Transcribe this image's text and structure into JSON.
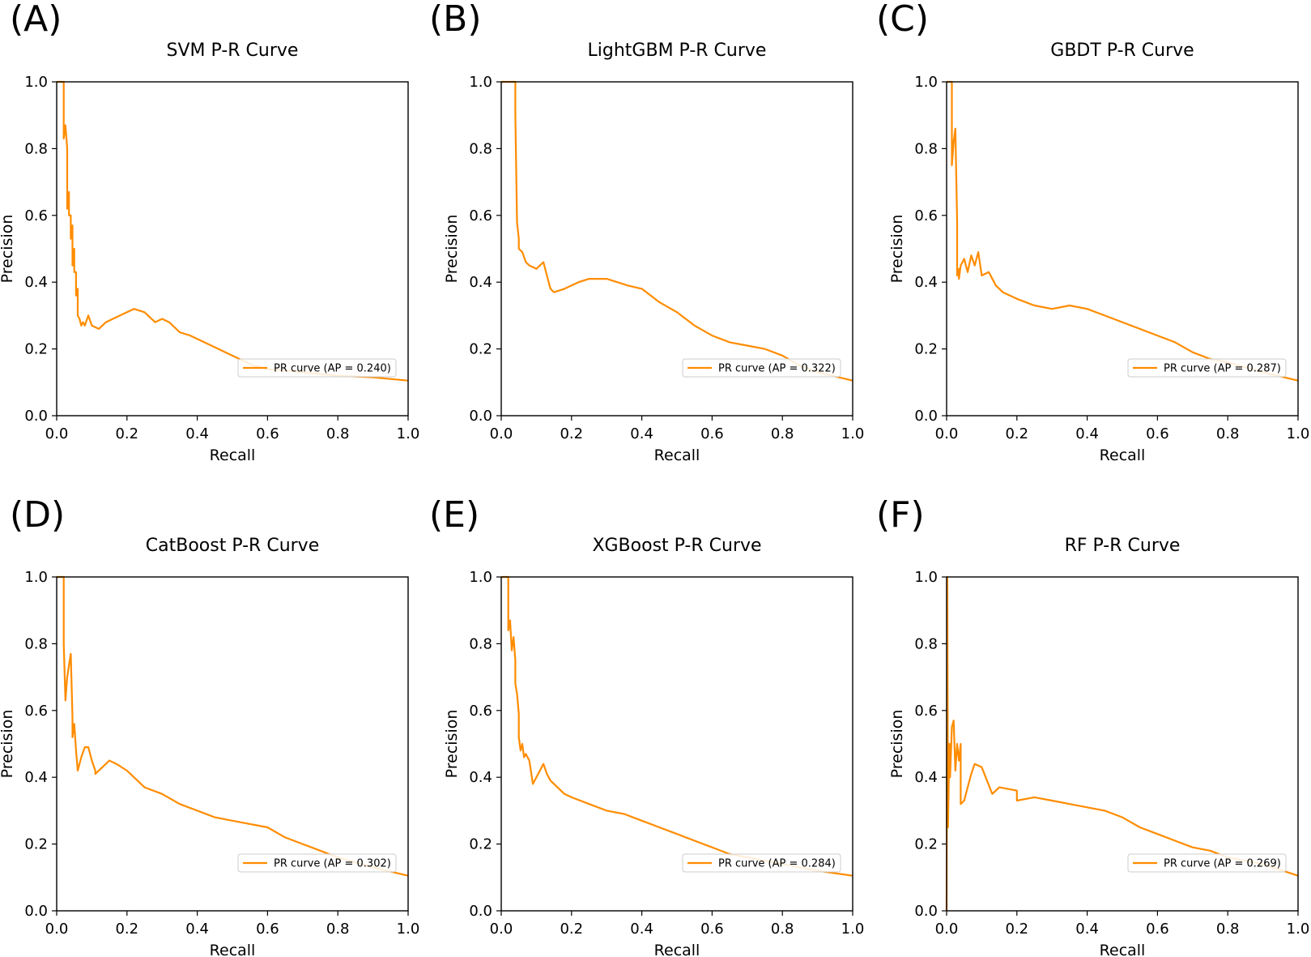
{
  "figure": {
    "background": "#ffffff",
    "line_color": "#ff8c00"
  },
  "chart_data": [
    {
      "panel_label": "(A)",
      "type": "line",
      "title": "SVM P-R Curve",
      "xlabel": "Recall",
      "ylabel": "Precision",
      "xlim": [
        0,
        1
      ],
      "ylim": [
        0,
        1
      ],
      "xticks": [
        "0.0",
        "0.2",
        "0.4",
        "0.6",
        "0.8",
        "1.0"
      ],
      "yticks": [
        "0.0",
        "0.2",
        "0.4",
        "0.6",
        "0.8",
        "1.0"
      ],
      "legend": {
        "label": "PR curve (AP = 0.240)",
        "location": "lower-right"
      },
      "series": [
        {
          "name": "PR curve",
          "x": [
            0,
            0.02,
            0.02,
            0.025,
            0.03,
            0.03,
            0.035,
            0.035,
            0.04,
            0.04,
            0.045,
            0.045,
            0.05,
            0.05,
            0.055,
            0.055,
            0.06,
            0.06,
            0.065,
            0.07,
            0.075,
            0.08,
            0.09,
            0.1,
            0.12,
            0.14,
            0.16,
            0.18,
            0.2,
            0.22,
            0.25,
            0.28,
            0.3,
            0.32,
            0.35,
            0.38,
            0.4,
            0.44,
            0.48,
            0.52,
            0.56,
            0.6,
            0.7,
            0.8,
            0.9,
            0.95,
            1.0
          ],
          "y": [
            1.0,
            1.0,
            0.83,
            0.87,
            0.8,
            0.62,
            0.67,
            0.6,
            0.6,
            0.53,
            0.57,
            0.45,
            0.5,
            0.43,
            0.43,
            0.36,
            0.38,
            0.3,
            0.29,
            0.27,
            0.28,
            0.27,
            0.3,
            0.27,
            0.26,
            0.28,
            0.29,
            0.3,
            0.31,
            0.32,
            0.31,
            0.28,
            0.29,
            0.28,
            0.25,
            0.24,
            0.23,
            0.21,
            0.19,
            0.17,
            0.15,
            0.14,
            0.13,
            0.12,
            0.115,
            0.11,
            0.105
          ]
        }
      ]
    },
    {
      "panel_label": "(B)",
      "type": "line",
      "title": "LightGBM P-R Curve",
      "xlabel": "Recall",
      "ylabel": "Precision",
      "xlim": [
        0,
        1
      ],
      "ylim": [
        0,
        1
      ],
      "xticks": [
        "0.0",
        "0.2",
        "0.4",
        "0.6",
        "0.8",
        "1.0"
      ],
      "yticks": [
        "0.0",
        "0.2",
        "0.4",
        "0.6",
        "0.8",
        "1.0"
      ],
      "legend": {
        "label": "PR curve (AP = 0.322)",
        "location": "lower-right"
      },
      "series": [
        {
          "name": "PR curve",
          "x": [
            0,
            0.04,
            0.04,
            0.045,
            0.05,
            0.05,
            0.06,
            0.07,
            0.08,
            0.1,
            0.12,
            0.13,
            0.14,
            0.15,
            0.18,
            0.2,
            0.22,
            0.25,
            0.28,
            0.3,
            0.33,
            0.36,
            0.4,
            0.45,
            0.5,
            0.55,
            0.6,
            0.65,
            0.7,
            0.75,
            0.8,
            0.85,
            0.9,
            1.0
          ],
          "y": [
            1.0,
            1.0,
            0.9,
            0.58,
            0.53,
            0.5,
            0.49,
            0.46,
            0.45,
            0.44,
            0.46,
            0.42,
            0.38,
            0.37,
            0.38,
            0.39,
            0.4,
            0.41,
            0.41,
            0.41,
            0.4,
            0.39,
            0.38,
            0.34,
            0.31,
            0.27,
            0.24,
            0.22,
            0.21,
            0.2,
            0.18,
            0.15,
            0.13,
            0.105
          ]
        }
      ]
    },
    {
      "panel_label": "(C)",
      "type": "line",
      "title": "GBDT P-R Curve",
      "xlabel": "Recall",
      "ylabel": "Precision",
      "xlim": [
        0,
        1
      ],
      "ylim": [
        0,
        1
      ],
      "xticks": [
        "0.0",
        "0.2",
        "0.4",
        "0.6",
        "0.8",
        "1.0"
      ],
      "yticks": [
        "0.0",
        "0.2",
        "0.4",
        "0.6",
        "0.8",
        "1.0"
      ],
      "legend": {
        "label": "PR curve (AP = 0.287)",
        "location": "lower-right"
      },
      "series": [
        {
          "name": "PR curve",
          "x": [
            0,
            0.015,
            0.015,
            0.02,
            0.025,
            0.03,
            0.03,
            0.035,
            0.035,
            0.04,
            0.05,
            0.06,
            0.07,
            0.08,
            0.09,
            0.1,
            0.12,
            0.14,
            0.16,
            0.2,
            0.25,
            0.3,
            0.35,
            0.4,
            0.45,
            0.5,
            0.55,
            0.6,
            0.65,
            0.7,
            0.75,
            0.8,
            0.9,
            1.0
          ],
          "y": [
            1.0,
            1.0,
            0.75,
            0.82,
            0.86,
            0.58,
            0.42,
            0.44,
            0.41,
            0.45,
            0.47,
            0.43,
            0.48,
            0.45,
            0.49,
            0.42,
            0.43,
            0.39,
            0.37,
            0.35,
            0.33,
            0.32,
            0.33,
            0.32,
            0.3,
            0.28,
            0.26,
            0.24,
            0.22,
            0.19,
            0.17,
            0.16,
            0.13,
            0.105
          ]
        }
      ]
    },
    {
      "panel_label": "(D)",
      "type": "line",
      "title": "CatBoost P-R Curve",
      "xlabel": "Recall",
      "ylabel": "Precision",
      "xlim": [
        0,
        1
      ],
      "ylim": [
        0,
        1
      ],
      "xticks": [
        "0.0",
        "0.2",
        "0.4",
        "0.6",
        "0.8",
        "1.0"
      ],
      "yticks": [
        "0.0",
        "0.2",
        "0.4",
        "0.6",
        "0.8",
        "1.0"
      ],
      "legend": {
        "label": "PR curve (AP = 0.302)",
        "location": "lower-right"
      },
      "series": [
        {
          "name": "PR curve",
          "x": [
            0,
            0.02,
            0.02,
            0.025,
            0.03,
            0.04,
            0.045,
            0.045,
            0.05,
            0.055,
            0.06,
            0.07,
            0.08,
            0.09,
            0.1,
            0.11,
            0.11,
            0.13,
            0.15,
            0.17,
            0.2,
            0.22,
            0.25,
            0.3,
            0.35,
            0.4,
            0.45,
            0.5,
            0.55,
            0.6,
            0.65,
            0.7,
            0.75,
            0.8,
            0.9,
            1.0
          ],
          "y": [
            1.0,
            1.0,
            0.8,
            0.63,
            0.7,
            0.77,
            0.58,
            0.52,
            0.56,
            0.48,
            0.42,
            0.46,
            0.49,
            0.49,
            0.45,
            0.42,
            0.41,
            0.43,
            0.45,
            0.44,
            0.42,
            0.4,
            0.37,
            0.35,
            0.32,
            0.3,
            0.28,
            0.27,
            0.26,
            0.25,
            0.22,
            0.2,
            0.18,
            0.16,
            0.13,
            0.105
          ]
        }
      ]
    },
    {
      "panel_label": "(E)",
      "type": "line",
      "title": "XGBoost P-R Curve",
      "xlabel": "Recall",
      "ylabel": "Precision",
      "xlim": [
        0,
        1
      ],
      "ylim": [
        0,
        1
      ],
      "xticks": [
        "0.0",
        "0.2",
        "0.4",
        "0.6",
        "0.8",
        "1.0"
      ],
      "yticks": [
        "0.0",
        "0.2",
        "0.4",
        "0.6",
        "0.8",
        "1.0"
      ],
      "legend": {
        "label": "PR curve (AP = 0.284)",
        "location": "lower-right"
      },
      "series": [
        {
          "name": "PR curve",
          "x": [
            0,
            0.02,
            0.02,
            0.025,
            0.03,
            0.035,
            0.04,
            0.04,
            0.045,
            0.05,
            0.05,
            0.055,
            0.06,
            0.065,
            0.07,
            0.08,
            0.09,
            0.1,
            0.12,
            0.13,
            0.14,
            0.16,
            0.18,
            0.2,
            0.25,
            0.3,
            0.35,
            0.4,
            0.45,
            0.5,
            0.55,
            0.6,
            0.65,
            0.7,
            0.8,
            0.9,
            1.0
          ],
          "y": [
            1.0,
            1.0,
            0.84,
            0.87,
            0.78,
            0.82,
            0.75,
            0.68,
            0.65,
            0.59,
            0.52,
            0.48,
            0.5,
            0.46,
            0.47,
            0.45,
            0.38,
            0.4,
            0.44,
            0.41,
            0.39,
            0.37,
            0.35,
            0.34,
            0.32,
            0.3,
            0.29,
            0.27,
            0.25,
            0.23,
            0.21,
            0.19,
            0.17,
            0.16,
            0.14,
            0.12,
            0.105
          ]
        }
      ]
    },
    {
      "panel_label": "(F)",
      "type": "line",
      "title": "RF P-R Curve",
      "xlabel": "Recall",
      "ylabel": "Precision",
      "xlim": [
        0,
        1
      ],
      "ylim": [
        0,
        1
      ],
      "xticks": [
        "0.0",
        "0.2",
        "0.4",
        "0.6",
        "0.8",
        "1.0"
      ],
      "yticks": [
        "0.0",
        "0.2",
        "0.4",
        "0.6",
        "0.8",
        "1.0"
      ],
      "legend": {
        "label": "PR curve (AP = 0.269)",
        "location": "lower-right"
      },
      "series": [
        {
          "name": "PR curve",
          "x": [
            0,
            0.002,
            0.004,
            0.008,
            0.01,
            0.015,
            0.02,
            0.025,
            0.03,
            0.035,
            0.04,
            0.04,
            0.05,
            0.06,
            0.07,
            0.08,
            0.1,
            0.13,
            0.15,
            0.2,
            0.2,
            0.25,
            0.3,
            0.35,
            0.4,
            0.45,
            0.5,
            0.55,
            0.6,
            0.65,
            0.7,
            0.75,
            0.8,
            0.9,
            1.0
          ],
          "y": [
            0,
            1.0,
            0.25,
            0.5,
            0.4,
            0.55,
            0.57,
            0.42,
            0.5,
            0.45,
            0.5,
            0.32,
            0.33,
            0.37,
            0.41,
            0.44,
            0.43,
            0.35,
            0.37,
            0.36,
            0.33,
            0.34,
            0.33,
            0.32,
            0.31,
            0.3,
            0.28,
            0.25,
            0.23,
            0.21,
            0.19,
            0.18,
            0.16,
            0.14,
            0.105
          ]
        }
      ]
    }
  ]
}
